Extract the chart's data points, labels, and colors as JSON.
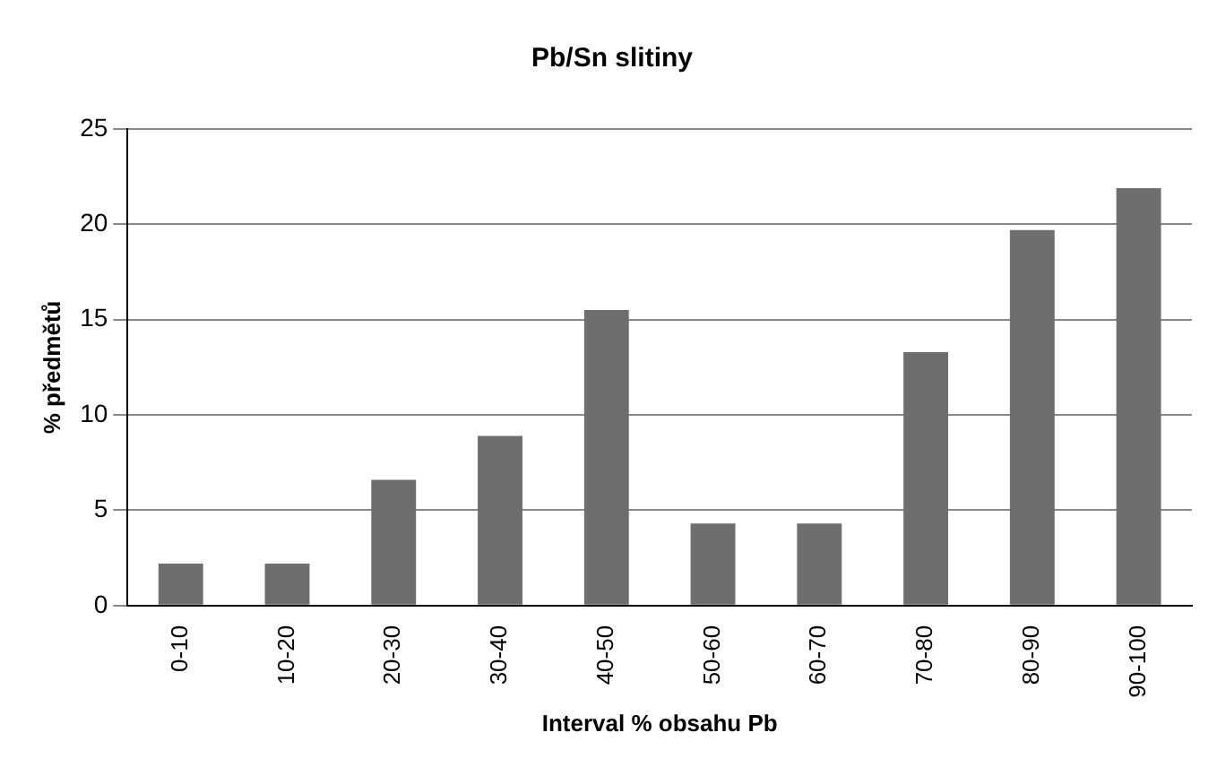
{
  "chart_data": {
    "type": "bar",
    "title": "Pb/Sn slitiny",
    "xlabel": "Interval % obsahu Pb",
    "ylabel": "% předmětů",
    "categories": [
      "0-10",
      "10-20",
      "20-30",
      "30-40",
      "40-50",
      "50-60",
      "60-70",
      "70-80",
      "80-90",
      "90-100"
    ],
    "values": [
      2.2,
      2.2,
      6.6,
      8.9,
      15.5,
      4.3,
      4.3,
      13.3,
      19.7,
      21.9
    ],
    "color": "#6e6e6e",
    "ylim": [
      0,
      25
    ],
    "yticks": [
      0,
      5,
      10,
      15,
      20,
      25
    ],
    "grid": "y",
    "legend": false
  }
}
